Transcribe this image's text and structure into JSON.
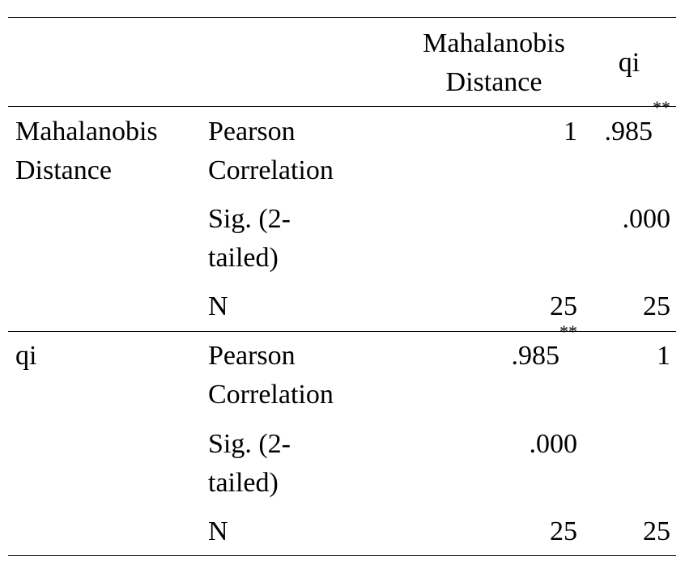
{
  "header": {
    "col_mahalanobis": [
      "Mahalanobis",
      "Distance"
    ],
    "col_qi": "qi"
  },
  "rows": [
    {
      "variable": [
        "Mahalanobis",
        "Distance"
      ],
      "stats": [
        {
          "label": [
            "Pearson",
            "Correlation"
          ],
          "mahalanobis": "1",
          "mahalanobis_sig": "",
          "qi": ".985",
          "qi_sig": "**"
        },
        {
          "label": [
            "Sig. (2-",
            "tailed)"
          ],
          "mahalanobis": "",
          "mahalanobis_sig": "",
          "qi": ".000",
          "qi_sig": ""
        },
        {
          "label": [
            "N"
          ],
          "mahalanobis": "25",
          "mahalanobis_sig": "",
          "qi": "25",
          "qi_sig": ""
        }
      ]
    },
    {
      "variable": [
        "qi"
      ],
      "stats": [
        {
          "label": [
            "Pearson",
            "Correlation"
          ],
          "mahalanobis": ".985",
          "mahalanobis_sig": "**",
          "qi": "1",
          "qi_sig": ""
        },
        {
          "label": [
            "Sig. (2-",
            "tailed)"
          ],
          "mahalanobis": ".000",
          "mahalanobis_sig": "",
          "qi": "",
          "qi_sig": ""
        },
        {
          "label": [
            "N"
          ],
          "mahalanobis": "25",
          "mahalanobis_sig": "",
          "qi": "25",
          "qi_sig": ""
        }
      ]
    }
  ]
}
